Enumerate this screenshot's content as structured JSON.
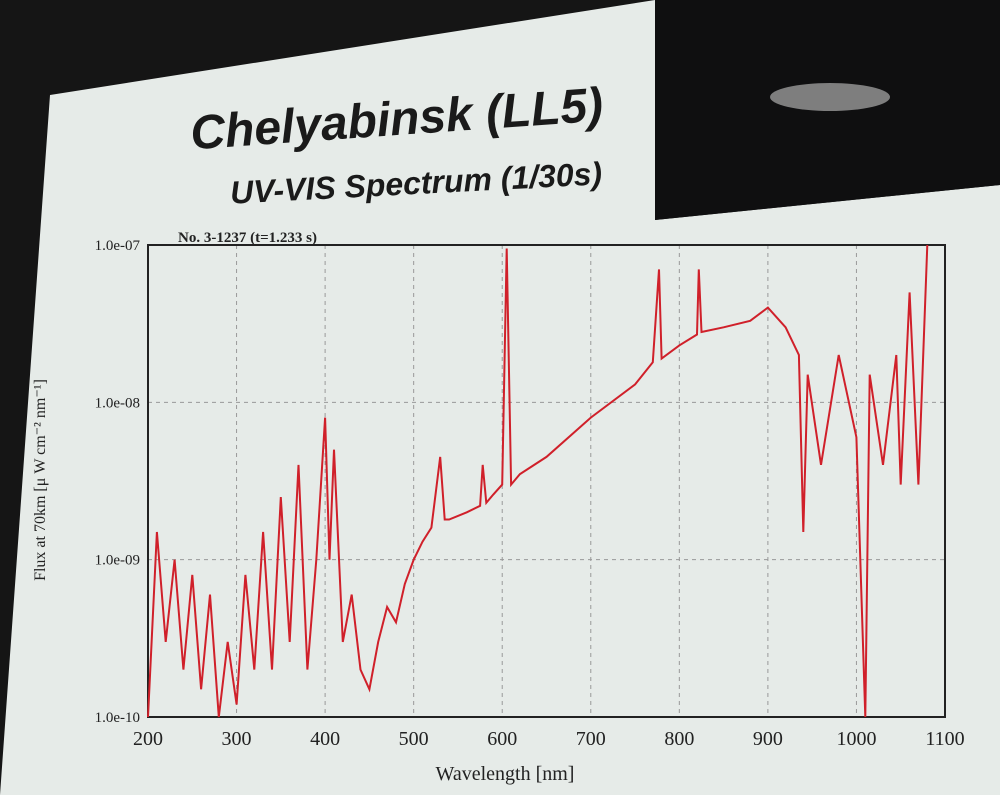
{
  "slide": {
    "title": "Chelyabinsk (LL5)",
    "subtitle": "UV-VIS Spectrum (1/30s)"
  },
  "chart_data": {
    "type": "line",
    "annotation": "No. 3-1237 (t=1.233 s)",
    "xlabel": "Wavelength [nm]",
    "ylabel": "Flux at 70km [μ W cm⁻² nm⁻¹]",
    "xlim": [
      200,
      1100
    ],
    "ylim": [
      1e-10,
      1e-07
    ],
    "yscale": "log",
    "grid": true,
    "xticks": [
      "200",
      "300",
      "400",
      "500",
      "600",
      "700",
      "800",
      "900",
      "1000",
      "1100"
    ],
    "yticks": [
      "1.0e-10",
      "1.0e-09",
      "1.0e-08",
      "1.0e-07"
    ],
    "line_color": "#d0202a",
    "series": [
      {
        "x": [
          200,
          210,
          220,
          230,
          240,
          250,
          260,
          270,
          280,
          290,
          300,
          310,
          320,
          330,
          340,
          350,
          360,
          370,
          380,
          390,
          400,
          405,
          410,
          420,
          430,
          440,
          450,
          460,
          470,
          480,
          490,
          500,
          510,
          520,
          530,
          535,
          540,
          560,
          575,
          578,
          582,
          590,
          600,
          605,
          610,
          620,
          650,
          700,
          750,
          770,
          777,
          780,
          800,
          820,
          822,
          825,
          850,
          880,
          900,
          920,
          935,
          940,
          945,
          960,
          980,
          1000,
          1010,
          1015,
          1030,
          1045,
          1050,
          1060,
          1070,
          1080
        ],
        "y": [
          1e-10,
          1.5e-09,
          3e-10,
          1e-09,
          2e-10,
          8e-10,
          1.5e-10,
          6e-10,
          1e-10,
          3e-10,
          1.2e-10,
          8e-10,
          2e-10,
          1.5e-09,
          2e-10,
          2.5e-09,
          3e-10,
          4e-09,
          2e-10,
          1e-09,
          8e-09,
          1e-09,
          5e-09,
          3e-10,
          6e-10,
          2e-10,
          1.5e-10,
          3e-10,
          5e-10,
          4e-10,
          7e-10,
          1e-09,
          1.3e-09,
          1.6e-09,
          4.5e-09,
          1.8e-09,
          1.8e-09,
          2e-09,
          2.2e-09,
          4e-09,
          2.3e-09,
          2.6e-09,
          3e-09,
          9.5e-08,
          3e-09,
          3.5e-09,
          4.5e-09,
          8e-09,
          1.3e-08,
          1.8e-08,
          7e-08,
          1.9e-08,
          2.3e-08,
          2.7e-08,
          7e-08,
          2.8e-08,
          3e-08,
          3.3e-08,
          4e-08,
          3e-08,
          2e-08,
          1.5e-09,
          1.5e-08,
          4e-09,
          2e-08,
          6e-09,
          1e-10,
          1.5e-08,
          4e-09,
          2e-08,
          3e-09,
          5e-08,
          3e-09,
          1e-07
        ]
      }
    ]
  }
}
